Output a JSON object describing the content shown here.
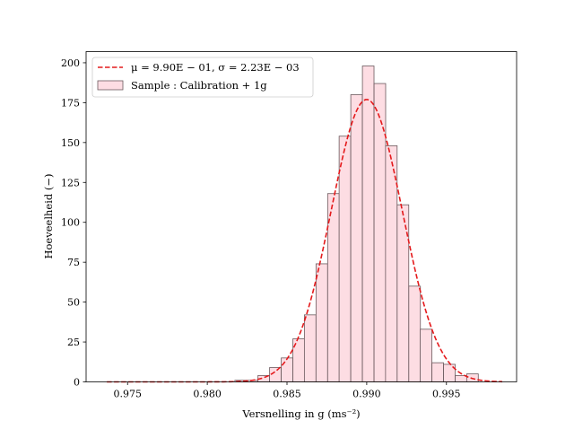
{
  "chart_data": {
    "type": "bar",
    "xlabel": "Versnelling in g (ms⁻²)",
    "ylabel": "Hoeveelheid (−)",
    "xlim": [
      0.9724,
      0.9994
    ],
    "ylim": [
      0,
      207
    ],
    "x_ticks": [
      0.975,
      0.98,
      0.985,
      0.99,
      0.995
    ],
    "x_tick_labels": [
      "0.975",
      "0.980",
      "0.985",
      "0.990",
      "0.995"
    ],
    "y_ticks": [
      0,
      25,
      50,
      75,
      100,
      125,
      150,
      175,
      200
    ],
    "y_tick_labels": [
      "0",
      "25",
      "50",
      "75",
      "100",
      "125",
      "150",
      "175",
      "200"
    ],
    "legend_position": "top-left",
    "series": [
      {
        "name": "μ = 9.90E − 01, σ = 2.23E − 03",
        "kind": "line",
        "style": "dashed",
        "color": "#e41a1c",
        "mu": 0.99,
        "sigma": 0.00223,
        "peak": 177,
        "x_range": [
          0.9737,
          0.9985
        ]
      },
      {
        "name": "Sample : Calibration + 1g",
        "kind": "histogram",
        "fill": "#fddde3",
        "edge": "#6b5a5e",
        "bin_width": 0.000727,
        "bin_left": [
          0.98173,
          0.98246,
          0.98318,
          0.98391,
          0.98464,
          0.98537,
          0.98609,
          0.98682,
          0.98755,
          0.98827,
          0.989,
          0.98973,
          0.99046,
          0.99118,
          0.99191,
          0.99264,
          0.99336,
          0.99409,
          0.99482,
          0.99555,
          0.99627
        ],
        "counts": [
          1,
          1,
          4,
          9,
          15,
          27,
          42,
          74,
          118,
          154,
          180,
          198,
          187,
          148,
          111,
          60,
          33,
          12,
          11,
          4,
          5
        ]
      }
    ]
  }
}
